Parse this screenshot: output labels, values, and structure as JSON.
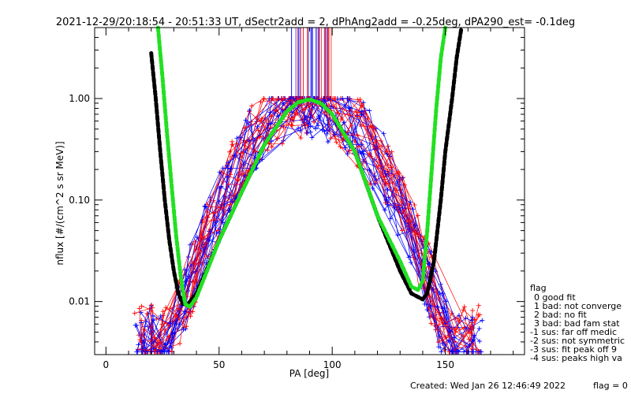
{
  "chart_data": {
    "type": "line",
    "title": "2021-12-29/20:18:54 - 20:51:33 UT, dSectr2add = 2, dPhAng2add = -0.25deg, dPA290_est=  -0.1deg",
    "xlabel": "PA [deg]",
    "ylabel": "nflux [#/(cm^2 s sr MeV)]",
    "xlim": [
      -5,
      185
    ],
    "ylim": [
      0.003,
      5.0
    ],
    "yscale": "log",
    "x_ticks": [
      0,
      50,
      100,
      150
    ],
    "y_ticks": [
      0.01,
      0.1,
      1.0
    ],
    "x_tick_labels": [
      "0",
      "50",
      "100",
      "150"
    ],
    "y_tick_labels": [
      "0.01",
      "0.10",
      "1.00"
    ],
    "grid": false,
    "series": [
      {
        "color": "#000000",
        "style": "thick-dashed",
        "x": [
          20,
          22,
          24,
          26,
          28,
          30,
          32,
          34,
          36,
          40,
          50,
          60,
          70,
          80,
          85,
          90,
          95,
          100,
          110,
          120,
          130,
          135,
          140,
          142,
          145,
          148,
          150,
          153,
          155,
          157
        ],
        "y": [
          2.8,
          1.0,
          0.3,
          0.1,
          0.04,
          0.02,
          0.012,
          0.0095,
          0.0093,
          0.012,
          0.04,
          0.12,
          0.35,
          0.75,
          0.92,
          0.98,
          0.9,
          0.7,
          0.3,
          0.07,
          0.02,
          0.012,
          0.0105,
          0.012,
          0.025,
          0.1,
          0.3,
          1.0,
          2.5,
          4.8
        ]
      },
      {
        "color": "#22e022",
        "style": "thick-dashed",
        "x": [
          23,
          25,
          27,
          29,
          31,
          33,
          35,
          37,
          40,
          50,
          60,
          70,
          80,
          85,
          90,
          95,
          100,
          110,
          120,
          130,
          135,
          138,
          140,
          142,
          144,
          146,
          148,
          150
        ],
        "y": [
          5.0,
          1.6,
          0.45,
          0.14,
          0.045,
          0.018,
          0.0095,
          0.0088,
          0.011,
          0.04,
          0.12,
          0.35,
          0.75,
          0.92,
          0.98,
          0.9,
          0.7,
          0.3,
          0.07,
          0.025,
          0.014,
          0.013,
          0.016,
          0.05,
          0.2,
          0.8,
          2.5,
          5.0
        ]
      }
    ],
    "legend": {
      "placement": "right, outside plot",
      "title": "flag",
      "entries": [
        "0 good fit",
        "1 bad: not converge",
        "2 bad: no fit",
        "3 bad: bad fam stat",
        "-1 sus: far off medic",
        "-2 sus: not symmetric",
        "-3 sus: fit peak off 9",
        "-4 sus: peaks high va"
      ]
    },
    "footer": {
      "created": "Created: Wed Jan 26 12:46:49 2022",
      "flag": "flag = 0"
    }
  },
  "colors": {
    "red": "#ff0000",
    "blue": "#0000ff",
    "black": "#000000",
    "green": "#22e022"
  }
}
